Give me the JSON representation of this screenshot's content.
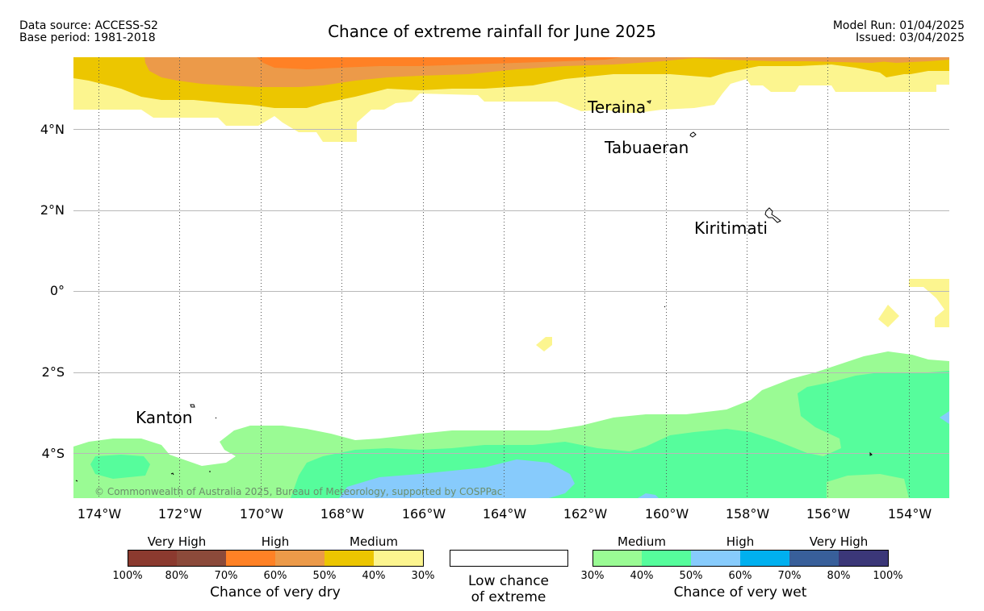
{
  "header": {
    "left_line1": "Data source: ACCESS-S2",
    "left_line2": "Base period: 1981-2018",
    "title": "Chance of extreme rainfall for June 2025",
    "right_line1": "Model Run: 01/04/2025",
    "right_line2": "Issued: 03/04/2025"
  },
  "map": {
    "latitude_labels": [
      "4°N",
      "2°N",
      "0°",
      "2°S",
      "4°S"
    ],
    "longitude_labels": [
      "174°W",
      "172°W",
      "170°W",
      "168°W",
      "166°W",
      "164°W",
      "162°W",
      "160°W",
      "158°W",
      "156°W",
      "154°W"
    ],
    "places": {
      "teraina": "Teraina",
      "tabuaeran": "Tabuaeran",
      "kiritimati": "Kiritimati",
      "kanton": "Kanton"
    },
    "copyright": "© Commonwealth of Australia 2025, Bureau of Meteorology, supported by COSPPac"
  },
  "legend": {
    "dry": {
      "categories": [
        "Very High",
        "High",
        "Medium"
      ],
      "ticks": [
        "100%",
        "80%",
        "70%",
        "60%",
        "50%",
        "40%",
        "30%"
      ],
      "colors": [
        "#8b3a2f",
        "#8b4a3a",
        "#ff8125",
        "#ec9a49",
        "#ecc600",
        "#fcf58f"
      ],
      "caption": "Chance of very dry"
    },
    "low": {
      "caption_line1": "Low chance",
      "caption_line2": "of extreme",
      "color": "#ffffff"
    },
    "wet": {
      "categories": [
        "Medium",
        "High",
        "Very High"
      ],
      "ticks": [
        "30%",
        "40%",
        "50%",
        "60%",
        "70%",
        "80%",
        "100%"
      ],
      "colors": [
        "#9afb94",
        "#56fd9c",
        "#87cbfc",
        "#00b0ef",
        "#385f9a",
        "#3b3778"
      ],
      "caption": "Chance of very wet"
    }
  }
}
